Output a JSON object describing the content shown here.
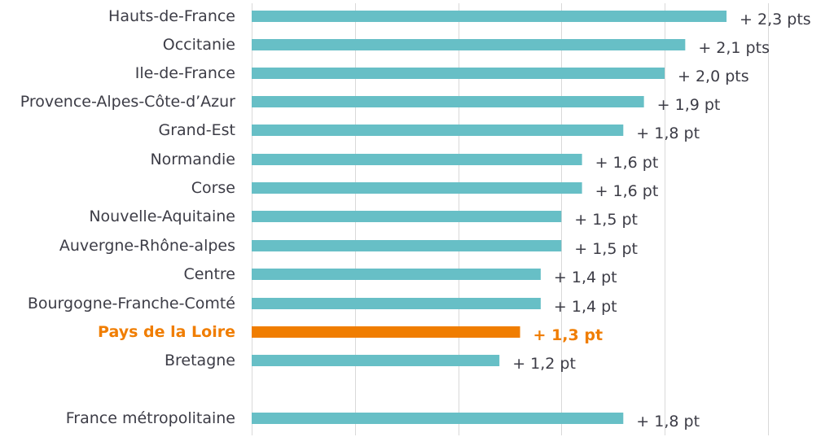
{
  "chart_data": {
    "type": "bar",
    "orientation": "horizontal",
    "categories": [
      "Hauts-de-France",
      "Occitanie",
      "Ile-de-France",
      "Provence-Alpes-Côte-d’Azur",
      "Grand-Est",
      "Normandie",
      "Corse",
      "Nouvelle-Aquitaine",
      "Auvergne-Rhône-alpes",
      "Centre",
      "Bourgogne-Franche-Comté",
      "Pays de la Loire",
      "Bretagne",
      "France métropolitaine"
    ],
    "values": [
      2.3,
      2.1,
      2.0,
      1.9,
      1.8,
      1.6,
      1.6,
      1.5,
      1.5,
      1.4,
      1.4,
      1.3,
      1.2,
      1.8
    ],
    "data_labels": [
      "+ 2,3 pts",
      "+ 2,1 pts",
      "+ 2,0 pts",
      "+ 1,9 pt",
      "+ 1,8 pt",
      "+ 1,6 pt",
      "+ 1,6 pt",
      "+ 1,5 pt",
      "+ 1,5 pt",
      "+ 1,4 pt",
      "+ 1,4 pt",
      "+ 1,3 pt",
      "+ 1,2 pt",
      "+ 1,8 pt"
    ],
    "highlight": "Pays de la Loire",
    "xlim": [
      0,
      2.5
    ],
    "grid": true,
    "legend": "none"
  },
  "colors": {
    "bar": "#67bfc6",
    "highlight": "#f07d00",
    "text": "#3c3c46",
    "grid": "#d9d9d9"
  }
}
